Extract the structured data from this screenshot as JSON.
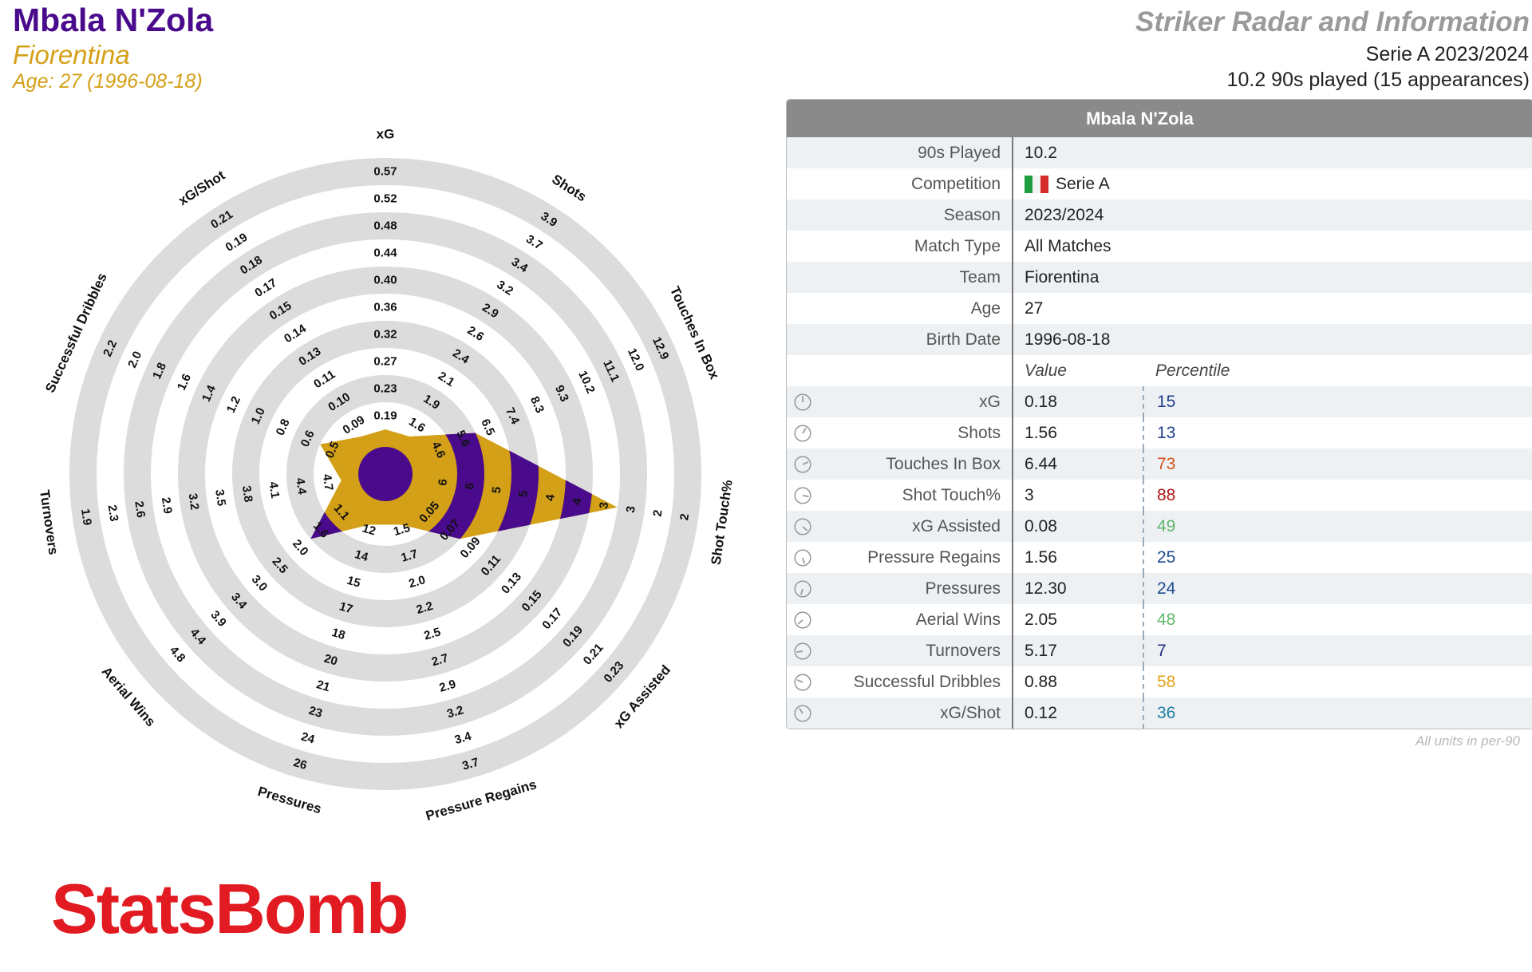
{
  "header": {
    "player": "Mbala N'Zola",
    "team": "Fiorentina",
    "age_line": "Age: 27 (1996-08-18)",
    "report_title": "Striker Radar and Information",
    "competition_line": "Serie A 2023/2024",
    "played_line": "10.2 90s played (15 appearances)"
  },
  "info": {
    "title": "Mbala N'Zola",
    "rows": [
      {
        "label": "90s Played",
        "value": "10.2"
      },
      {
        "label": "Competition",
        "value": "Serie A"
      },
      {
        "label": "Season",
        "value": "2023/2024"
      },
      {
        "label": "Match Type",
        "value": "All Matches"
      },
      {
        "label": "Team",
        "value": "Fiorentina"
      },
      {
        "label": "Age",
        "value": "27"
      },
      {
        "label": "Birth Date",
        "value": "1996-08-18"
      }
    ],
    "value_header": "Value",
    "percentile_header": "Percentile",
    "metrics": [
      {
        "label": "xG",
        "value": "0.18",
        "percentile": "15",
        "color": "#1f3f8f"
      },
      {
        "label": "Shots",
        "value": "1.56",
        "percentile": "13",
        "color": "#1f3f8f"
      },
      {
        "label": "Touches In Box",
        "value": "6.44",
        "percentile": "73",
        "color": "#d2541a"
      },
      {
        "label": "Shot Touch%",
        "value": "3",
        "percentile": "88",
        "color": "#b01616"
      },
      {
        "label": "xG Assisted",
        "value": "0.08",
        "percentile": "49",
        "color": "#5fb66a"
      },
      {
        "label": "Pressure Regains",
        "value": "1.56",
        "percentile": "25",
        "color": "#1e4b8f"
      },
      {
        "label": "Pressures",
        "value": "12.30",
        "percentile": "24",
        "color": "#1e4b8f"
      },
      {
        "label": "Aerial Wins",
        "value": "2.05",
        "percentile": "48",
        "color": "#5fb66a"
      },
      {
        "label": "Turnovers",
        "value": "5.17",
        "percentile": "7",
        "color": "#1f2f7f"
      },
      {
        "label": "Successful Dribbles",
        "value": "0.88",
        "percentile": "58",
        "color": "#e3a21a"
      },
      {
        "label": "xG/Shot",
        "value": "0.12",
        "percentile": "36",
        "color": "#1e7fa0"
      }
    ],
    "units_note": "All units in per-90"
  },
  "logo": "StatsBomb",
  "colors": {
    "purple": "#4a0a8c",
    "gold": "#d4a017",
    "ring": "#dcdcdc",
    "header_bg": "#8a8a8a",
    "logo_red": "#e21b23"
  },
  "chart_data": {
    "type": "radar",
    "axes": [
      {
        "name": "xG",
        "ticks": [
          "0.19",
          "0.23",
          "0.27",
          "0.32",
          "0.36",
          "0.40",
          "0.44",
          "0.48",
          "0.52",
          "0.57"
        ],
        "fill": 0.0
      },
      {
        "name": "Shots",
        "ticks": [
          "1.6",
          "1.9",
          "2.1",
          "2.4",
          "2.6",
          "2.9",
          "3.2",
          "3.4",
          "3.7",
          "3.9"
        ],
        "fill": 0.0
      },
      {
        "name": "Touches In Box",
        "ticks": [
          "4.6",
          "5.6",
          "6.5",
          "7.4",
          "8.3",
          "9.3",
          "10.2",
          "11.1",
          "12.0",
          "12.9"
        ],
        "fill": 0.2
      },
      {
        "name": "Shot Touch%",
        "ticks": [
          "6",
          "6",
          "5",
          "5",
          "4",
          "4",
          "3",
          "3",
          "2",
          "2"
        ],
        "fill": 0.7
      },
      {
        "name": "xG Assisted",
        "ticks": [
          "0.05",
          "0.07",
          "0.09",
          "0.11",
          "0.13",
          "0.15",
          "0.17",
          "0.19",
          "0.21",
          "0.23"
        ],
        "fill": 0.2
      },
      {
        "name": "Pressure Regains",
        "ticks": [
          "1.5",
          "1.7",
          "2.0",
          "2.2",
          "2.5",
          "2.7",
          "2.9",
          "3.2",
          "3.4",
          "3.7"
        ],
        "fill": 0.03
      },
      {
        "name": "Pressures",
        "ticks": [
          "12",
          "14",
          "15",
          "17",
          "18",
          "20",
          "21",
          "23",
          "24",
          "26"
        ],
        "fill": 0.03
      },
      {
        "name": "Aerial Wins",
        "ticks": [
          "1.1",
          "1.6",
          "2.0",
          "2.5",
          "3.0",
          "3.4",
          "3.9",
          "4.4",
          "4.8"
        ],
        "fill": 0.2
      },
      {
        "name": "Turnovers",
        "ticks": [
          "4.7",
          "4.4",
          "4.1",
          "3.8",
          "3.5",
          "3.2",
          "2.9",
          "2.6",
          "2.3",
          "1.9"
        ],
        "fill": 0.0
      },
      {
        "name": "Successful Dribbles",
        "ticks": [
          "0.5",
          "0.6",
          "0.8",
          "1.0",
          "1.2",
          "1.4",
          "1.6",
          "1.8",
          "2.0",
          "2.2"
        ],
        "fill": 0.1
      },
      {
        "name": "xG/Shot",
        "ticks": [
          "0.09",
          "0.10",
          "0.11",
          "0.13",
          "0.14",
          "0.15",
          "0.17",
          "0.18",
          "0.19",
          "0.21"
        ],
        "fill": 0.0
      }
    ]
  }
}
